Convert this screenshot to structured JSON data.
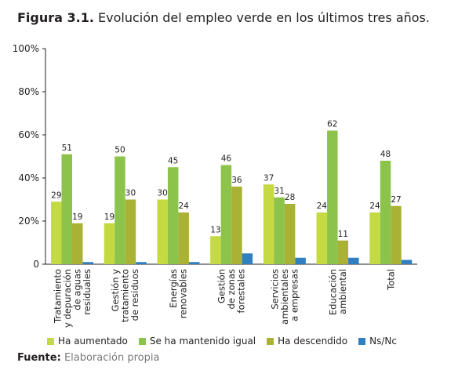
{
  "title": {
    "label": "Figura 3.1.",
    "text": "Evolución del empleo verde en los últimos tres años."
  },
  "source": {
    "label": "Fuente:",
    "text": "Elaboración propia"
  },
  "chart_data": {
    "type": "bar",
    "ylim": [
      0,
      100
    ],
    "yticks": [
      "0",
      "20%",
      "40%",
      "60%",
      "80%",
      "100%"
    ],
    "ytick_values": [
      0,
      20,
      40,
      60,
      80,
      100
    ],
    "categories": [
      [
        "Tratamiento",
        "y depuración",
        "de aguas",
        "residuales"
      ],
      [
        "Gestión y",
        "tratamiento",
        "de residuos"
      ],
      [
        "Energías",
        "renovables"
      ],
      [
        "Gestión",
        "de zonas",
        "forestales"
      ],
      [
        "Servicios",
        "ambientales",
        "a empresas"
      ],
      [
        "Educación",
        "ambiental"
      ],
      [
        "Total"
      ]
    ],
    "series": [
      {
        "name": "Ha aumentado",
        "color": "#c5d943",
        "values": [
          29,
          19,
          30,
          13,
          37,
          24,
          24
        ],
        "labels": [
          true,
          true,
          true,
          true,
          true,
          true,
          true
        ]
      },
      {
        "name": "Se ha mantenido igual",
        "color": "#8cc34a",
        "values": [
          51,
          50,
          45,
          46,
          31,
          62,
          48
        ],
        "labels": [
          true,
          true,
          true,
          true,
          true,
          true,
          true
        ]
      },
      {
        "name": "Ha descendido",
        "color": "#aab236",
        "values": [
          19,
          30,
          24,
          36,
          28,
          11,
          27
        ],
        "labels": [
          true,
          true,
          true,
          true,
          true,
          true,
          true
        ]
      },
      {
        "name": "Ns/Nc",
        "color": "#2f7fc1",
        "values": [
          1,
          1,
          1,
          5,
          3,
          3,
          2
        ],
        "labels": [
          false,
          false,
          false,
          false,
          false,
          false,
          false
        ]
      }
    ],
    "legend_position": "bottom",
    "grid": false
  }
}
